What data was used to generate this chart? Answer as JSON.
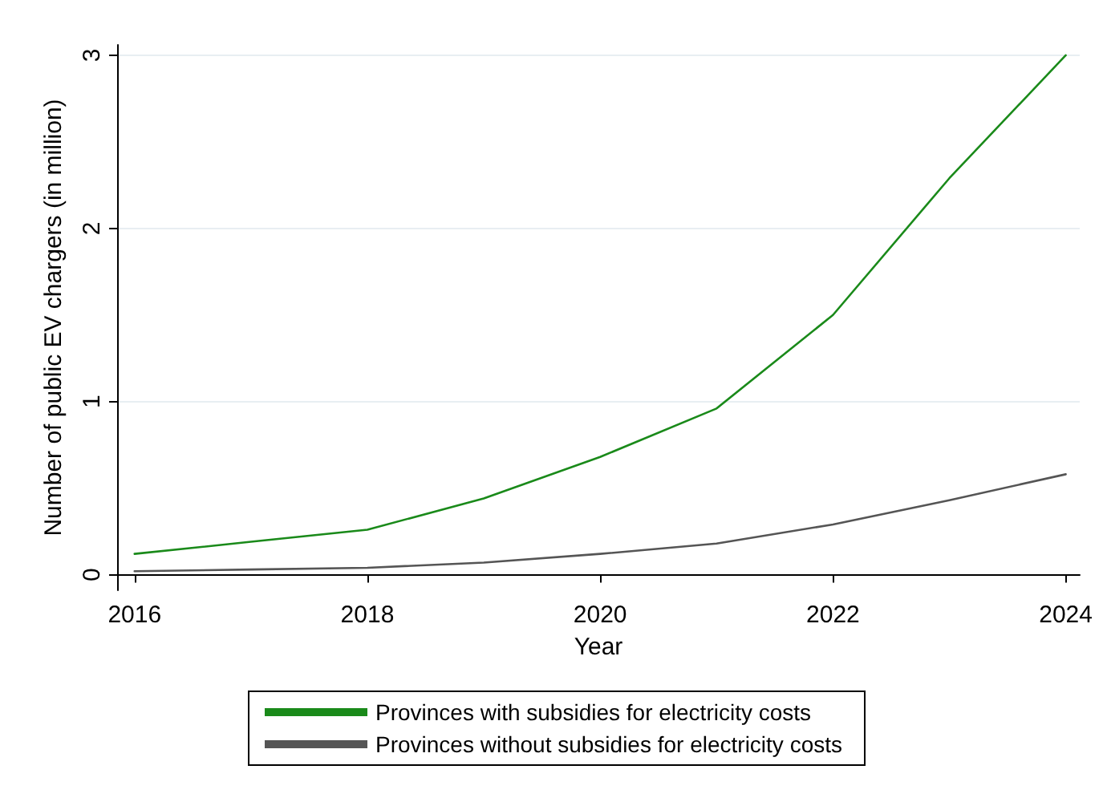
{
  "chart_data": {
    "type": "line",
    "xlabel": "Year",
    "ylabel": "Number of public EV chargers (in million)",
    "x": [
      2016,
      2017,
      2018,
      2019,
      2020,
      2021,
      2022,
      2023,
      2024
    ],
    "series": [
      {
        "name": "Provinces with subsidies for electricity costs",
        "color": "#1a8a1a",
        "values": [
          0.12,
          0.19,
          0.26,
          0.44,
          0.68,
          0.96,
          1.5,
          2.29,
          3.0
        ]
      },
      {
        "name": "Provinces without subsidies for electricity costs",
        "color": "#555555",
        "values": [
          0.02,
          0.03,
          0.04,
          0.07,
          0.12,
          0.18,
          0.29,
          0.43,
          0.58
        ]
      }
    ],
    "xlim": [
      2015.85,
      2024.12
    ],
    "xticks": [
      2016,
      2018,
      2020,
      2022,
      2024
    ],
    "ylim": [
      -0.09,
      3.06
    ],
    "yticks": [
      0,
      1,
      2,
      3
    ],
    "grid": "y",
    "legend": "bottom",
    "marker": "none",
    "line_style": "solid"
  }
}
